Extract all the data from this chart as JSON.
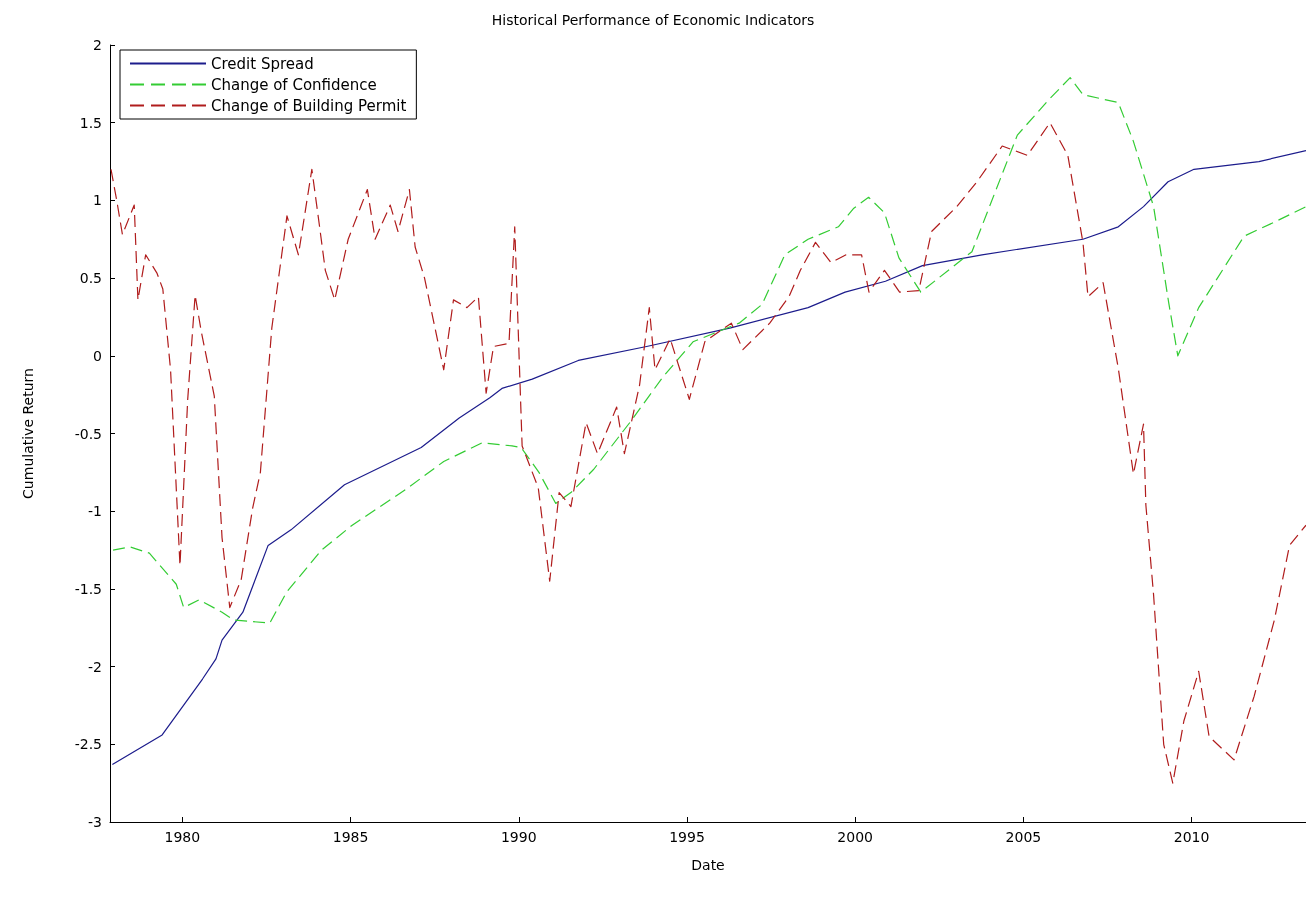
{
  "chart_data": {
    "type": "line",
    "title": "Historical Performance of Economic Indicators",
    "xlabel": "Date",
    "ylabel": "Cumulative Return",
    "xlim": [
      1977.85,
      2013.4
    ],
    "xticks": [
      1980,
      1985,
      1990,
      1995,
      2000,
      2005,
      2010
    ],
    "ylim": [
      -3,
      2
    ],
    "yticks": [
      -3,
      -2.5,
      -2,
      -1.5,
      -1,
      -0.5,
      0,
      0.5,
      1,
      1.5,
      2
    ],
    "grid": false,
    "legend": "top left",
    "marker": "none",
    "series": [
      {
        "name": "Credit Spread",
        "color": "#1c1c8c",
        "line_style": "solid",
        "x": [
          1977.92,
          1979.4,
          1980.6,
          1981.0,
          1981.18,
          1981.8,
          1982.55,
          1983.23,
          1984.82,
          1987.1,
          1988.23,
          1989.14,
          1989.5,
          1990.4,
          1991.77,
          1993.8,
          1996.3,
          1998.6,
          1999.7,
          2000.9,
          2002.0,
          2003.77,
          2006.77,
          2007.82,
          2008.57,
          2009.3,
          2010.07,
          2012.0,
          2013.4
        ],
        "values": [
          -2.63,
          -2.44,
          -2.08,
          -1.95,
          -1.83,
          -1.65,
          -1.22,
          -1.12,
          -0.83,
          -0.59,
          -0.4,
          -0.27,
          -0.21,
          -0.15,
          -0.03,
          0.06,
          0.18,
          0.31,
          0.41,
          0.48,
          0.58,
          0.65,
          0.75,
          0.83,
          0.96,
          1.12,
          1.2,
          1.25,
          1.32
        ]
      },
      {
        "name": "Change of Confidence",
        "color": "#33cc33",
        "line_style": "dashed",
        "x": [
          1977.94,
          1978.45,
          1979.02,
          1979.82,
          1980.04,
          1980.5,
          1981.18,
          1981.52,
          1982.6,
          1983.1,
          1984.14,
          1985.05,
          1986.64,
          1987.77,
          1988.91,
          1989.8,
          1990.07,
          1990.6,
          1991.1,
          1991.55,
          1992.23,
          1993.37,
          1994.27,
          1995.18,
          1996.55,
          1997.23,
          1997.91,
          1998.6,
          1999.5,
          1999.96,
          2000.4,
          2000.87,
          2001.3,
          2001.95,
          2003.47,
          2004.82,
          2005.72,
          2006.39,
          2006.77,
          2007.82,
          2008.27,
          2008.87,
          2009.32,
          2009.59,
          2010.21,
          2011.56,
          2012.46,
          2013.4
        ],
        "values": [
          -1.25,
          -1.23,
          -1.27,
          -1.47,
          -1.62,
          -1.57,
          -1.65,
          -1.7,
          -1.72,
          -1.52,
          -1.25,
          -1.09,
          -0.86,
          -0.68,
          -0.56,
          -0.58,
          -0.59,
          -0.75,
          -0.95,
          -0.88,
          -0.73,
          -0.41,
          -0.14,
          0.09,
          0.21,
          0.33,
          0.65,
          0.75,
          0.83,
          0.95,
          1.02,
          0.92,
          0.63,
          0.41,
          0.67,
          1.42,
          1.64,
          1.79,
          1.68,
          1.63,
          1.38,
          0.96,
          0.34,
          0.0,
          0.31,
          0.77,
          0.86,
          0.96
        ]
      },
      {
        "name": "Change of Building Permit",
        "color": "#b01c1c",
        "line_style": "dashed",
        "x": [
          1977.88,
          1978.05,
          1978.22,
          1978.57,
          1978.68,
          1978.91,
          1979.25,
          1979.42,
          1979.65,
          1979.93,
          1980.16,
          1980.38,
          1980.56,
          1980.95,
          1981.18,
          1981.41,
          1981.75,
          1982.09,
          1982.32,
          1982.66,
          1983.11,
          1983.45,
          1983.85,
          1984.08,
          1984.25,
          1984.53,
          1984.93,
          1985.5,
          1985.73,
          1986.18,
          1986.41,
          1986.75,
          1986.92,
          1987.2,
          1987.77,
          1988.06,
          1988.46,
          1988.8,
          1989.03,
          1989.25,
          1989.71,
          1989.88,
          1990.1,
          1990.58,
          1990.92,
          1991.2,
          1991.55,
          1992.0,
          1992.34,
          1992.91,
          1993.14,
          1993.59,
          1993.88,
          1994.05,
          1994.5,
          1995.07,
          1995.53,
          1995.98,
          1996.32,
          1996.66,
          1997.46,
          1998.03,
          1998.37,
          1998.82,
          1999.28,
          1999.73,
          2000.19,
          2000.41,
          2000.87,
          2001.32,
          2001.89,
          2002.27,
          2003.02,
          2003.62,
          2004.37,
          2005.12,
          2005.79,
          2006.32,
          2006.77,
          2006.92,
          2007.37,
          2007.82,
          2008.27,
          2008.57,
          2008.64,
          2008.87,
          2009.17,
          2009.44,
          2009.77,
          2010.21,
          2010.52,
          2011.26,
          2011.86,
          2012.46,
          2012.91,
          2013.4
        ],
        "values": [
          1.2,
          1.0,
          0.78,
          0.97,
          0.36,
          0.65,
          0.53,
          0.43,
          -0.09,
          -1.35,
          -0.28,
          0.39,
          0.16,
          -0.26,
          -1.17,
          -1.62,
          -1.44,
          -0.98,
          -0.75,
          0.18,
          0.9,
          0.65,
          1.2,
          0.83,
          0.55,
          0.36,
          0.75,
          1.07,
          0.75,
          0.97,
          0.8,
          1.07,
          0.7,
          0.5,
          -0.09,
          0.36,
          0.31,
          0.38,
          -0.24,
          0.06,
          0.08,
          0.83,
          -0.58,
          -0.85,
          -1.45,
          -0.88,
          -0.97,
          -0.43,
          -0.63,
          -0.33,
          -0.63,
          -0.19,
          0.31,
          -0.09,
          0.11,
          -0.28,
          0.09,
          0.16,
          0.21,
          0.04,
          0.21,
          0.38,
          0.55,
          0.73,
          0.6,
          0.65,
          0.65,
          0.41,
          0.55,
          0.41,
          0.42,
          0.8,
          0.96,
          1.12,
          1.35,
          1.29,
          1.5,
          1.29,
          0.73,
          0.38,
          0.47,
          -0.08,
          -0.76,
          -0.44,
          -0.96,
          -1.54,
          -2.5,
          -2.75,
          -2.35,
          -2.03,
          -2.45,
          -2.6,
          -2.19,
          -1.7,
          -1.22,
          -1.09
        ]
      }
    ]
  }
}
